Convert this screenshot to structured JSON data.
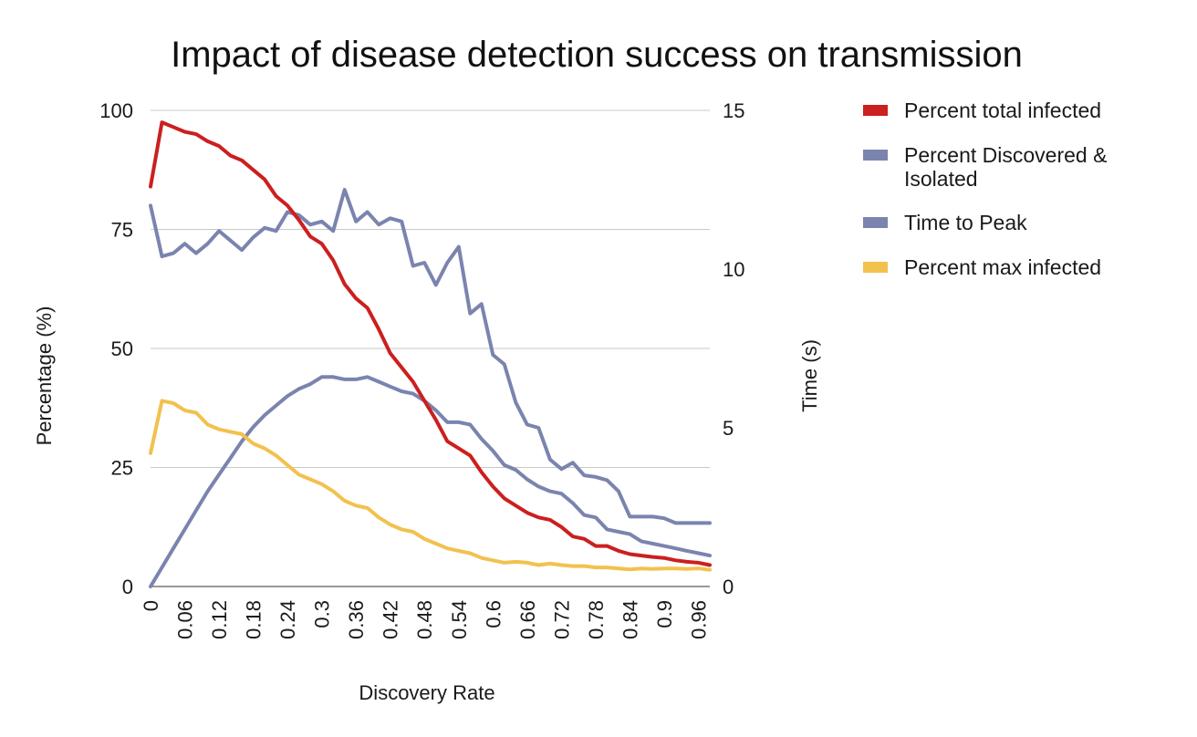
{
  "chart_data": {
    "type": "line",
    "title": "Impact of disease detection success on transmission",
    "xlabel": "Discovery Rate",
    "ylabel": "Percentage (%)",
    "y2label": "Time (s)",
    "ylim": [
      0,
      100
    ],
    "y2lim": [
      0,
      15
    ],
    "grid": true,
    "legend_position": "right",
    "yticks": [
      "0",
      "25",
      "50",
      "75",
      "100"
    ],
    "y2ticks": [
      "0",
      "5",
      "10",
      "15"
    ],
    "xticks": [
      "0",
      "0.06",
      "0.12",
      "0.18",
      "0.24",
      "0.3",
      "0.36",
      "0.42",
      "0.48",
      "0.54",
      "0.6",
      "0.66",
      "0.72",
      "0.78",
      "0.84",
      "0.9",
      "0.96"
    ],
    "x": [
      0,
      0.02,
      0.04,
      0.06,
      0.08,
      0.1,
      0.12,
      0.14,
      0.16,
      0.18,
      0.2,
      0.22,
      0.24,
      0.26,
      0.28,
      0.3,
      0.32,
      0.34,
      0.36,
      0.38,
      0.4,
      0.42,
      0.44,
      0.46,
      0.48,
      0.5,
      0.52,
      0.54,
      0.56,
      0.58,
      0.6,
      0.62,
      0.64,
      0.66,
      0.68,
      0.7,
      0.72,
      0.74,
      0.76,
      0.78,
      0.8,
      0.82,
      0.84,
      0.86,
      0.88,
      0.9,
      0.92,
      0.94,
      0.96,
      0.98
    ],
    "series": [
      {
        "name": "Percent total infected",
        "axis": "left",
        "color": "#cc1f1f",
        "values": [
          84,
          97.5,
          96.5,
          95.5,
          95,
          93.5,
          92.5,
          90.5,
          89.5,
          87.5,
          85.5,
          82,
          80,
          77,
          73.5,
          72,
          68.5,
          63.5,
          60.5,
          58.5,
          54,
          49,
          46,
          43,
          39,
          35,
          30.5,
          29,
          27.5,
          24,
          21,
          18.5,
          17,
          15.5,
          14.5,
          14,
          12.5,
          10.5,
          10,
          8.5,
          8.5,
          7.5,
          6.8,
          6.5,
          6.2,
          6,
          5.5,
          5.2,
          5,
          4.5
        ]
      },
      {
        "name": "Percent Discovered & Isolated",
        "axis": "left",
        "color": "#7b84ae",
        "values": [
          0,
          4,
          8,
          12,
          16,
          20,
          23.5,
          27,
          30.5,
          33.5,
          36,
          38,
          40,
          41.5,
          42.5,
          44,
          44,
          43.5,
          43.5,
          44,
          43,
          42,
          41,
          40.5,
          39,
          37,
          34.5,
          34.5,
          34,
          31,
          28.5,
          25.5,
          24.5,
          22.5,
          21,
          20,
          19.5,
          17.5,
          15,
          14.5,
          12,
          11.5,
          11,
          9.5,
          9,
          8.5,
          8,
          7.5,
          7,
          6.5
        ]
      },
      {
        "name": "Time to Peak",
        "axis": "right",
        "color": "#7b84ae",
        "values": [
          12.0,
          10.4,
          10.5,
          10.8,
          10.5,
          10.8,
          11.2,
          10.9,
          10.6,
          11.0,
          11.3,
          11.2,
          11.8,
          11.7,
          11.4,
          11.5,
          11.2,
          12.5,
          11.5,
          11.8,
          11.4,
          11.6,
          11.5,
          10.1,
          10.2,
          9.5,
          10.2,
          10.7,
          8.6,
          8.9,
          7.3,
          7.0,
          5.8,
          5.1,
          5.0,
          4.0,
          3.7,
          3.9,
          3.5,
          3.45,
          3.35,
          3.0,
          2.2,
          2.2,
          2.2,
          2.15,
          2.0,
          2.0,
          2.0,
          2.0
        ]
      },
      {
        "name": "Percent max infected",
        "axis": "left",
        "color": "#f2c14e",
        "values": [
          28,
          39,
          38.5,
          37,
          36.5,
          34,
          33,
          32.5,
          32,
          30,
          29,
          27.5,
          25.5,
          23.5,
          22.5,
          21.5,
          20,
          18,
          17,
          16.5,
          14.5,
          13,
          12,
          11.5,
          10,
          9,
          8,
          7.5,
          7,
          6,
          5.5,
          5,
          5.2,
          5,
          4.5,
          4.8,
          4.5,
          4.3,
          4.3,
          4,
          4,
          3.8,
          3.6,
          3.8,
          3.7,
          3.8,
          3.8,
          3.7,
          3.8,
          3.5
        ]
      }
    ]
  }
}
